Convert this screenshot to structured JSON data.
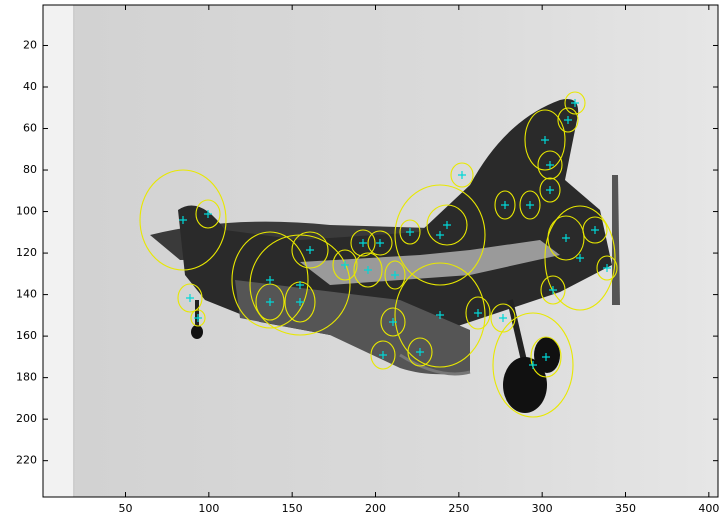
{
  "chart_data": {
    "type": "image",
    "xlim": [
      0.5,
      405.5
    ],
    "ylim": [
      0.5,
      237.5
    ],
    "xticks": [
      50,
      100,
      150,
      200,
      250,
      300,
      350,
      400
    ],
    "yticks": [
      20,
      40,
      60,
      80,
      100,
      120,
      140,
      160,
      180,
      200,
      220
    ]
  }
}
